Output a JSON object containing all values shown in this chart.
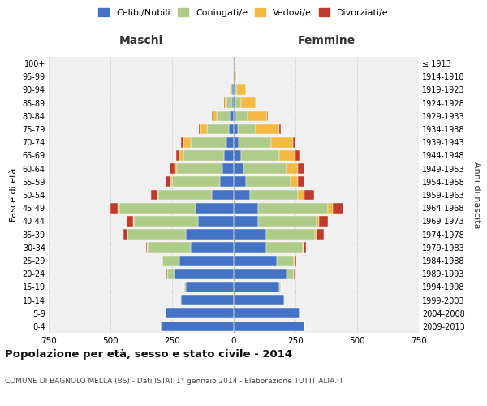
{
  "age_groups": [
    "0-4",
    "5-9",
    "10-14",
    "15-19",
    "20-24",
    "25-29",
    "30-34",
    "35-39",
    "40-44",
    "45-49",
    "50-54",
    "55-59",
    "60-64",
    "65-69",
    "70-74",
    "75-79",
    "80-84",
    "85-89",
    "90-94",
    "95-99",
    "100+"
  ],
  "birth_years": [
    "2009-2013",
    "2004-2008",
    "1999-2003",
    "1994-1998",
    "1989-1993",
    "1984-1988",
    "1979-1983",
    "1974-1978",
    "1969-1973",
    "1964-1968",
    "1959-1963",
    "1954-1958",
    "1949-1953",
    "1944-1948",
    "1939-1943",
    "1934-1938",
    "1929-1933",
    "1924-1928",
    "1919-1923",
    "1914-1918",
    "≤ 1913"
  ],
  "maschi": {
    "celibi": [
      295,
      275,
      215,
      195,
      240,
      220,
      175,
      195,
      145,
      155,
      90,
      55,
      45,
      40,
      30,
      20,
      15,
      8,
      5,
      2,
      2
    ],
    "coniugati": [
      0,
      0,
      2,
      5,
      30,
      70,
      175,
      235,
      260,
      310,
      215,
      195,
      185,
      165,
      145,
      90,
      55,
      20,
      8,
      2,
      1
    ],
    "vedovi": [
      0,
      0,
      0,
      0,
      0,
      0,
      1,
      2,
      3,
      5,
      5,
      5,
      10,
      15,
      30,
      25,
      15,
      8,
      5,
      0,
      0
    ],
    "divorziati": [
      0,
      0,
      0,
      0,
      2,
      3,
      5,
      15,
      25,
      30,
      25,
      20,
      20,
      15,
      10,
      5,
      3,
      2,
      0,
      0,
      0
    ]
  },
  "femmine": {
    "nubili": [
      285,
      265,
      205,
      185,
      215,
      175,
      130,
      130,
      100,
      100,
      65,
      50,
      40,
      30,
      20,
      15,
      10,
      8,
      5,
      2,
      2
    ],
    "coniugate": [
      0,
      0,
      2,
      5,
      30,
      70,
      150,
      200,
      235,
      280,
      195,
      180,
      175,
      155,
      130,
      75,
      45,
      20,
      8,
      2,
      0
    ],
    "vedove": [
      0,
      0,
      0,
      0,
      0,
      2,
      3,
      5,
      10,
      20,
      25,
      30,
      45,
      65,
      90,
      95,
      80,
      60,
      35,
      5,
      1
    ],
    "divorziate": [
      0,
      0,
      0,
      0,
      2,
      5,
      10,
      30,
      35,
      45,
      40,
      25,
      25,
      15,
      10,
      5,
      3,
      2,
      0,
      0,
      0
    ]
  },
  "colors": {
    "celibi": "#4472C4",
    "coniugati": "#AECB8A",
    "vedovi": "#F4B942",
    "divorziati": "#C0392B"
  },
  "title": "Popolazione per età, sesso e stato civile - 2014",
  "subtitle": "COMUNE DI BAGNOLO MELLA (BS) - Dati ISTAT 1° gennaio 2014 - Elaborazione TUTTITALIA.IT",
  "ylabel_left": "Fasce di età",
  "ylabel_right": "Anni di nascita",
  "xlabel_left": "Maschi",
  "xlabel_right": "Femmine",
  "xlim": 750,
  "bg_color": "#f0f0f0",
  "grid_color": "#cccccc"
}
